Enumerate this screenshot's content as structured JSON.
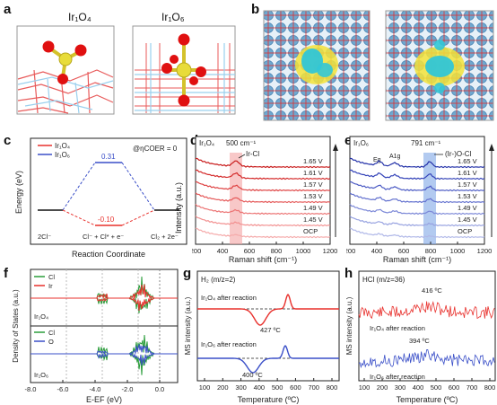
{
  "panels": {
    "a": {
      "letter": "a",
      "left_title": "Ir₁O₄",
      "right_title": "Ir₁O₆"
    },
    "b": {
      "letter": "b"
    },
    "c": {
      "letter": "c",
      "legend": [
        "Ir₁O₄",
        "Ir₁O₆"
      ],
      "condition": "@ηCOER = 0",
      "ylabel": "Energy (eV)",
      "xlabel": "Reaction Coordinate",
      "x_labels": [
        "2Cl⁻",
        "Cl⁻ + Cl* + e⁻",
        "Cl₂ + 2e⁻"
      ],
      "value_ir1o6": "0.31",
      "value_ir1o4": "-0.10"
    },
    "d": {
      "letter": "d",
      "label": "Ir₁O₄",
      "peak": "500 cm⁻¹",
      "bond": "Ir-Cl",
      "potentials": [
        "1.65 V",
        "1.61 V",
        "1.57 V",
        "1.53 V",
        "1.49 V",
        "1.45 V",
        "OCP"
      ],
      "xlabel": "Raman shift (cm⁻¹)",
      "ylabel": "Intensity (a.u.)",
      "xticks": [
        "200",
        "400",
        "600",
        "800",
        "1000",
        "1200"
      ]
    },
    "e": {
      "letter": "e",
      "label": "Ir₁O₆",
      "peak": "791 cm⁻¹",
      "bond": "(Ir-)O-Cl",
      "eg": "Eg",
      "a1g": "A1g",
      "potentials": [
        "1.65 V",
        "1.61 V",
        "1.57 V",
        "1.53 V",
        "1.49 V",
        "1.45 V",
        "OCP"
      ],
      "xlabel": "Raman shift (cm⁻¹)",
      "xticks": [
        "200",
        "400",
        "600",
        "800",
        "1000",
        "1200"
      ]
    },
    "f": {
      "letter": "f",
      "top_legend": [
        "Cl",
        "Ir"
      ],
      "bottom_legend": [
        "Cl",
        "O"
      ],
      "top_label": "Ir₁O₄",
      "bottom_label": "Ir₁O₆",
      "ylabel": "Density of States (a.u.)",
      "xlabel": "E-EF (eV)",
      "xticks": [
        "-8.0",
        "-6.0",
        "-4.0",
        "-2.0",
        "0.0"
      ]
    },
    "g": {
      "letter": "g",
      "title": "H₂ (m/z=2)",
      "top_label": "Ir₁O₄ after reaction",
      "bottom_label": "Ir₁O₆ after reaction",
      "top_temp": "427 ºC",
      "bottom_temp": "400 ºC",
      "ylabel": "MS intensity (a.u.)",
      "xlabel": "Temperature (ºC)",
      "xticks": [
        "100",
        "200",
        "300",
        "400",
        "500",
        "600",
        "700",
        "800"
      ]
    },
    "h": {
      "letter": "h",
      "title": "HCl (m/z=36)",
      "top_label": "Ir₁O₄ after reaction",
      "bottom_label": "Ir₁O₆ after reaction",
      "top_temp": "416 ºC",
      "bottom_temp": "394 ºC",
      "ylabel": "MS intensity (a.u.)",
      "xlabel": "Temperature (ºC)",
      "xticks": [
        "100",
        "200",
        "300",
        "400",
        "500",
        "600",
        "700",
        "800"
      ]
    }
  },
  "colors": {
    "ir1o4": "#e8302c",
    "ir1o6": "#3a4fc8",
    "highlight_red": "#f4a3a3",
    "highlight_blue": "#7fa6e6"
  }
}
